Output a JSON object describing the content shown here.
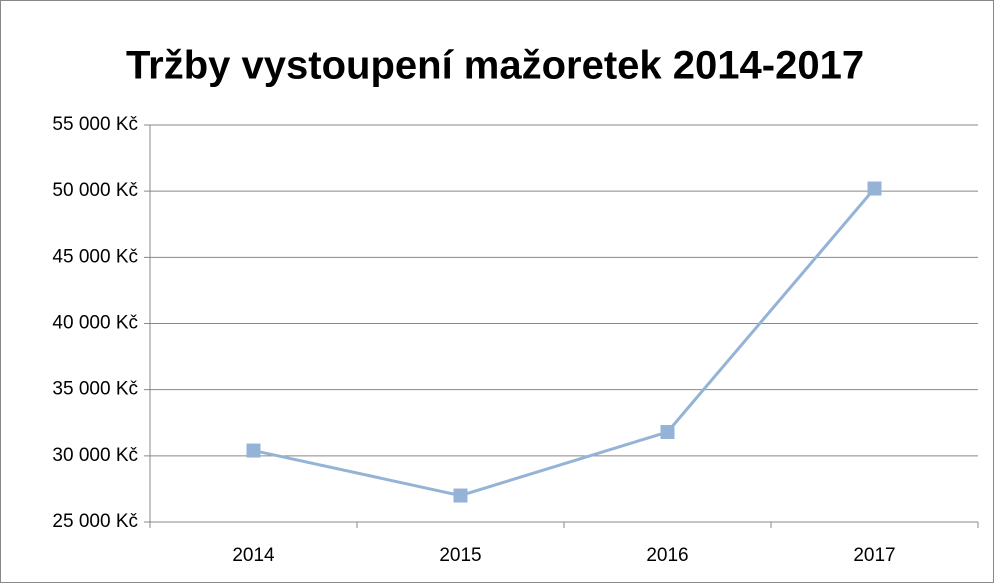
{
  "chart_data": {
    "type": "line",
    "title": "Tržby vystoupení mažoretek 2014-2017",
    "categories": [
      "2014",
      "2015",
      "2016",
      "2017"
    ],
    "values": [
      30400,
      27000,
      31800,
      50200
    ],
    "color": "#95b3d7",
    "ylim": [
      25000,
      55000
    ],
    "yticks": [
      {
        "value": 25000,
        "label": "25 000 Kč"
      },
      {
        "value": 30000,
        "label": "30 000 Kč"
      },
      {
        "value": 35000,
        "label": "35 000 Kč"
      },
      {
        "value": 40000,
        "label": "40 000 Kč"
      },
      {
        "value": 45000,
        "label": "45 000 Kč"
      },
      {
        "value": 50000,
        "label": "50 000 Kč"
      },
      {
        "value": 55000,
        "label": "55 000 Kč"
      }
    ],
    "grid": true
  }
}
